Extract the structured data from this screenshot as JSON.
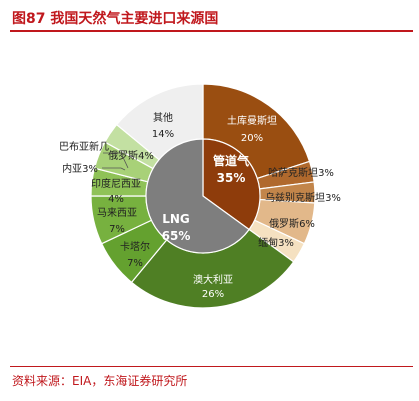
{
  "title": "图87  我国天然气主要进口来源国",
  "source": "资料来源：EIA，东海证券研究所",
  "chart_data": {
    "type": "pie",
    "inner": [
      {
        "name": "管道气",
        "pct": "35%",
        "value": 35,
        "color": "#8e3c0b"
      },
      {
        "name": "LNG",
        "pct": "65%",
        "value": 65,
        "color": "#7e7e7e"
      }
    ],
    "outer": [
      {
        "name": "土库曼斯坦",
        "pct": "20%",
        "value": 20,
        "color": "#9a4e11",
        "group": "管道气"
      },
      {
        "name": "哈萨克斯坦",
        "pct": "3%",
        "value": 3,
        "color": "#b0692d",
        "group": "管道气"
      },
      {
        "name": "乌兹别克斯坦",
        "pct": "3%",
        "value": 3,
        "color": "#c2854a",
        "group": "管道气"
      },
      {
        "name": "俄罗斯",
        "pct": "6%",
        "value": 6,
        "color": "#e2b88a",
        "group": "管道气"
      },
      {
        "name": "缅甸",
        "pct": "3%",
        "value": 3,
        "color": "#f5e1c1",
        "group": "管道气"
      },
      {
        "name": "澳大利亚",
        "pct": "26%",
        "value": 26,
        "color": "#4f7f24",
        "group": "LNG"
      },
      {
        "name": "卡塔尔",
        "pct": "7%",
        "value": 7,
        "color": "#64a12f",
        "group": "LNG"
      },
      {
        "name": "马来西亚",
        "pct": "7%",
        "value": 7,
        "color": "#77b13f",
        "group": "LNG"
      },
      {
        "name": "印度尼西亚",
        "pct": "4%",
        "value": 4,
        "color": "#8fc257",
        "group": "LNG"
      },
      {
        "name": "俄罗斯",
        "pct": "4%",
        "value": 4,
        "color": "#a8d178",
        "group": "LNG"
      },
      {
        "name": "内亚",
        "pct": "3%",
        "value": 3,
        "color": "#c3e0a2",
        "group": "LNG"
      },
      {
        "name": "巴布亚新几",
        "pct": "",
        "value": 0,
        "color": "#d4e8bd",
        "group": "LNG"
      },
      {
        "name": "其他",
        "pct": "14%",
        "value": 14,
        "color": "#efefef",
        "group": "LNG"
      }
    ]
  }
}
